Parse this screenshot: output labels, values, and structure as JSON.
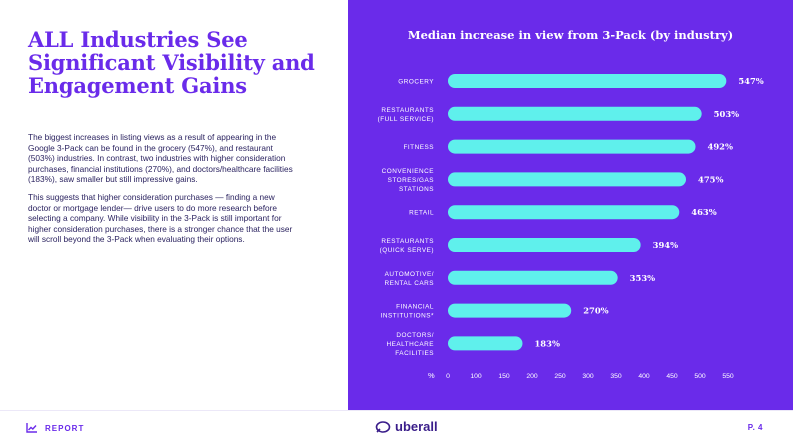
{
  "headline": "ALL Industries See Significant Visibility and Engagement Gains",
  "body": {
    "paragraph1": "The biggest increases in listing views as a result of appearing in the Google 3-Pack can be found in the grocery (547%), and restaurant (503%) industries. In contrast, two industries with higher consideration purchases, financial institutions (270%), and doctors/healthcare facilities (183%), saw smaller but still impressive gains.",
    "paragraph2": "This suggests that higher consideration purchases — finding a new doctor or mortgage lender— drive users to do more research before selecting a company. While visibility in the 3-Pack is still important for higher consideration purchases, there is a stronger chance that the user will scroll beyond the 3-Pack when evaluating their options."
  },
  "footer": {
    "report_label": "REPORT",
    "brand": "uberall",
    "page": "P. 4"
  },
  "colors": {
    "purple": "#6a2bea",
    "bar": "#5ff0ec",
    "white": "#ffffff"
  },
  "chart_data": {
    "type": "bar",
    "orientation": "horizontal",
    "title": "Median increase in view from 3-Pack (by industry)",
    "xlabel": "%",
    "xlim": [
      0,
      550
    ],
    "xticks": [
      0,
      100,
      150,
      200,
      250,
      300,
      350,
      400,
      450,
      500,
      550
    ],
    "categories": [
      [
        "GROCERY"
      ],
      [
        "RESTAURANTS",
        "(FULL SERVICE)"
      ],
      [
        "FITNESS"
      ],
      [
        "CONVENIENCE",
        "STORES/GAS",
        "STATIONS"
      ],
      [
        "RETAIL"
      ],
      [
        "RESTAURANTS",
        "(QUICK SERVE)"
      ],
      [
        "AUTOMOTIVE/",
        "RENTAL CARS"
      ],
      [
        "FINANCIAL",
        "INSTITUTIONS*"
      ],
      [
        "DOCTORS/",
        "HEALTHCARE",
        "FACILITIES"
      ]
    ],
    "values": [
      547,
      503,
      492,
      475,
      463,
      394,
      353,
      270,
      183
    ],
    "value_labels": [
      "547%",
      "503%",
      "492%",
      "475%",
      "463%",
      "394%",
      "353%",
      "270%",
      "183%"
    ]
  }
}
